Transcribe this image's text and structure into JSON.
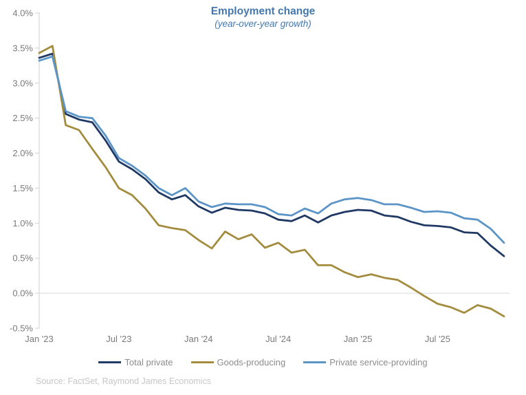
{
  "page": {
    "source": "Source: FactSet, Raymond James Economics"
  },
  "chart_data": {
    "type": "line",
    "title": "Employment change",
    "subtitle": "(year-over-year growth)",
    "xlabel": "",
    "ylabel": "",
    "ylim": [
      -0.5,
      4.0
    ],
    "grid": "horizontal zero line only",
    "legend_position": "bottom",
    "axis_color": "#d2d2d2",
    "grid_color": "#d9d9d9",
    "x": [
      "Jan '23",
      "Feb '23",
      "Mar '23",
      "Apr '23",
      "May '23",
      "Jun '23",
      "Jul '23",
      "Aug '23",
      "Sep '23",
      "Oct '23",
      "Nov '23",
      "Dec '23",
      "Jan '24",
      "Feb '24",
      "Mar '24",
      "Apr '24",
      "May '24",
      "Jun '24",
      "Jul '24",
      "Aug '24",
      "Sep '24",
      "Oct '24",
      "Nov '24",
      "Dec '24",
      "Jan '25",
      "Feb '25",
      "Mar '25",
      "Apr '25",
      "May '25",
      "Jun '25",
      "Jul '25",
      "Aug '25",
      "Sep '25",
      "Oct '25",
      "Nov '25",
      "Dec '25"
    ],
    "x_ticks": [
      {
        "index": 0,
        "label": "Jan '23"
      },
      {
        "index": 6,
        "label": "Jul '23"
      },
      {
        "index": 12,
        "label": "Jan '24"
      },
      {
        "index": 18,
        "label": "Jul '24"
      },
      {
        "index": 24,
        "label": "Jan '25"
      },
      {
        "index": 30,
        "label": "Jul '25"
      }
    ],
    "y_ticks": [
      {
        "value": 4.0,
        "label": "4.0%"
      },
      {
        "value": 3.5,
        "label": "3.5%"
      },
      {
        "value": 3.0,
        "label": "3.0%"
      },
      {
        "value": 2.5,
        "label": "2.5%"
      },
      {
        "value": 2.0,
        "label": "2.0%"
      },
      {
        "value": 1.5,
        "label": "1.5%"
      },
      {
        "value": 1.0,
        "label": "1.0%"
      },
      {
        "value": 0.5,
        "label": "0.5%"
      },
      {
        "value": 0.0,
        "label": "0.0%"
      },
      {
        "value": -0.5,
        "label": "-0.5%"
      }
    ],
    "series": [
      {
        "name": "Total private",
        "color": "#1f3864",
        "values": [
          3.36,
          3.42,
          2.56,
          2.48,
          2.44,
          2.18,
          1.88,
          1.77,
          1.63,
          1.44,
          1.34,
          1.4,
          1.24,
          1.15,
          1.22,
          1.19,
          1.18,
          1.14,
          1.05,
          1.03,
          1.11,
          1.01,
          1.11,
          1.16,
          1.19,
          1.18,
          1.11,
          1.09,
          1.02,
          0.97,
          0.96,
          0.94,
          0.87,
          0.86,
          0.68,
          0.53
        ]
      },
      {
        "name": "Goods-producing",
        "color": "#a38c3e",
        "values": [
          3.43,
          3.53,
          2.4,
          2.33,
          2.06,
          1.8,
          1.5,
          1.4,
          1.21,
          0.97,
          0.93,
          0.9,
          0.76,
          0.64,
          0.88,
          0.77,
          0.84,
          0.65,
          0.72,
          0.58,
          0.62,
          0.4,
          0.4,
          0.3,
          0.23,
          0.27,
          0.22,
          0.19,
          0.08,
          -0.04,
          -0.15,
          -0.2,
          -0.28,
          -0.17,
          -0.22,
          -0.33
        ]
      },
      {
        "name": "Private service-providing",
        "color": "#5b94c6",
        "values": [
          3.32,
          3.38,
          2.6,
          2.52,
          2.5,
          2.25,
          1.93,
          1.82,
          1.68,
          1.5,
          1.4,
          1.5,
          1.31,
          1.23,
          1.28,
          1.27,
          1.27,
          1.23,
          1.13,
          1.11,
          1.21,
          1.14,
          1.28,
          1.34,
          1.36,
          1.33,
          1.27,
          1.27,
          1.22,
          1.16,
          1.17,
          1.15,
          1.07,
          1.05,
          0.92,
          0.72
        ]
      }
    ]
  }
}
